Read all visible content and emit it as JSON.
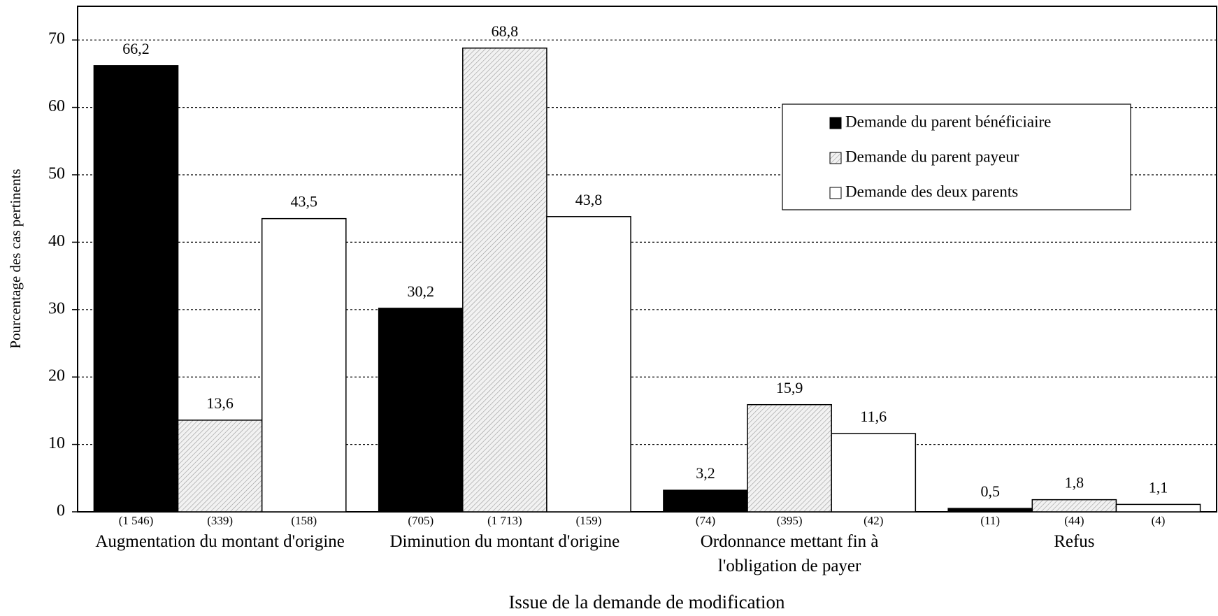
{
  "chart_data": {
    "type": "bar",
    "x_label": "Issue de la demande de modification",
    "y_label": "Pourcentage des cas pertinents",
    "categories": [
      "Augmentation du montant d'origine",
      "Diminution du montant d'origine",
      "Ordonnance mettant fin à l'obligation de payer",
      "Refus"
    ],
    "series": [
      {
        "name": "Demande du parent bénéficiaire",
        "color": "#000000",
        "values": [
          66.2,
          30.2,
          3.2,
          0.5
        ],
        "value_labels": [
          "66,2",
          "30,2",
          "3,2",
          "0,5"
        ],
        "counts": [
          "(1 546)",
          "(705)",
          "(74)",
          "(11)"
        ]
      },
      {
        "name": "Demande du parent payeur",
        "color": "#f2f2f2",
        "pattern": "hatch",
        "values": [
          13.6,
          68.8,
          15.9,
          1.8
        ],
        "value_labels": [
          "13,6",
          "68,8",
          "15,9",
          "1,8"
        ],
        "counts": [
          "(339)",
          "(1 713)",
          "(395)",
          "(44)"
        ]
      },
      {
        "name": "Demande des deux parents",
        "color": "#ffffff",
        "values": [
          43.5,
          43.8,
          11.6,
          1.1
        ],
        "value_labels": [
          "43,5",
          "43,8",
          "11,6",
          "1,1"
        ],
        "counts": [
          "(158)",
          "(159)",
          "(42)",
          "(4)"
        ]
      }
    ],
    "ylim": [
      0,
      75
    ],
    "yticks": [
      0,
      10,
      20,
      30,
      40,
      50,
      60,
      70
    ],
    "grid": true,
    "legend": "upper right"
  }
}
